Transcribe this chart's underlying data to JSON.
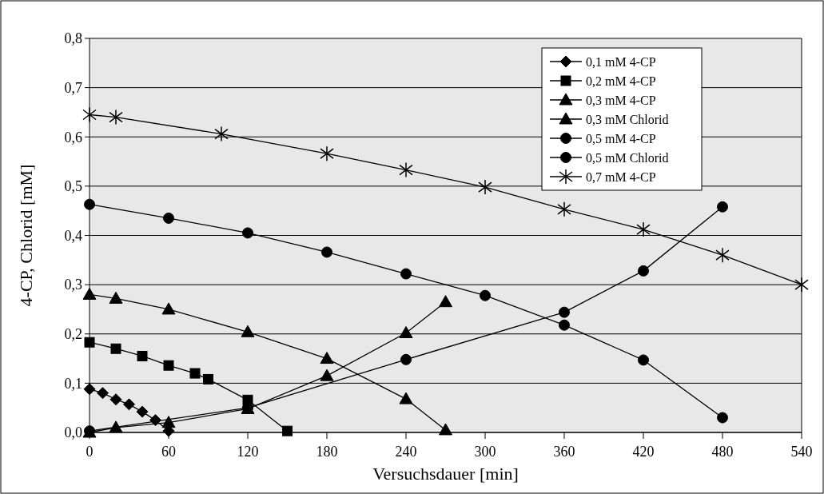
{
  "chart_data": {
    "type": "line",
    "xlabel": "Versuchsdauer [min]",
    "ylabel": "4-CP, Chlorid [mM]",
    "xlim": [
      0,
      540
    ],
    "xticks": [
      0,
      60,
      120,
      180,
      240,
      300,
      360,
      420,
      480,
      540
    ],
    "ylim": [
      0,
      0.8
    ],
    "yticks": [
      {
        "value": 0,
        "label": "0,0"
      },
      {
        "value": 0.1,
        "label": "0,1"
      },
      {
        "value": 0.2,
        "label": "0,2"
      },
      {
        "value": 0.3,
        "label": "0,3"
      },
      {
        "value": 0.4,
        "label": "0,4"
      },
      {
        "value": 0.5,
        "label": "0,5"
      },
      {
        "value": 0.6,
        "label": "0,6"
      },
      {
        "value": 0.7,
        "label": "0,7"
      },
      {
        "value": 0.8,
        "label": "0,8"
      }
    ],
    "grid": "y",
    "legend": "top right",
    "line_style": "solid",
    "series": [
      {
        "name": "0,1 mM 4-CP",
        "color": "#000000",
        "marker": "diamond",
        "x": [
          0,
          10,
          20,
          30,
          40,
          50,
          60
        ],
        "values": [
          0.088,
          0.08,
          0.067,
          0.057,
          0.042,
          0.025,
          0.003
        ]
      },
      {
        "name": "0,2 mM 4-CP",
        "color": "#000000",
        "marker": "square",
        "x": [
          0,
          20,
          40,
          60,
          80,
          90,
          120,
          150
        ],
        "values": [
          0.183,
          0.17,
          0.155,
          0.136,
          0.12,
          0.108,
          0.066,
          0.003
        ]
      },
      {
        "name": "0,3 mM 4-CP",
        "color": "#000000",
        "marker": "triangle",
        "x": [
          0,
          20,
          60,
          120,
          180,
          240,
          270
        ],
        "values": [
          0.28,
          0.272,
          0.25,
          0.204,
          0.15,
          0.068,
          0.005
        ]
      },
      {
        "name": "0,3 mM Chlorid",
        "color": "#000000",
        "marker": "triangle",
        "x": [
          0,
          20,
          60,
          120,
          180,
          240,
          270
        ],
        "values": [
          0,
          0.01,
          0.02,
          0.048,
          0.115,
          0.202,
          0.265
        ]
      },
      {
        "name": "0,5 mM 4-CP",
        "color": "#000000",
        "marker": "circle",
        "x": [
          0,
          60,
          120,
          180,
          240,
          300,
          360,
          420,
          480
        ],
        "values": [
          0.463,
          0.435,
          0.405,
          0.366,
          0.322,
          0.278,
          0.218,
          0.147,
          0.03
        ]
      },
      {
        "name": "0,5 mM Chlorid",
        "color": "#000000",
        "marker": "circle",
        "x": [
          0,
          120,
          240,
          360,
          420,
          480
        ],
        "values": [
          0.003,
          0.05,
          0.148,
          0.244,
          0.328,
          0.458
        ]
      },
      {
        "name": "0,7 mM 4-CP",
        "color": "#000000",
        "marker": "cross",
        "x": [
          0,
          20,
          100,
          180,
          240,
          300,
          360,
          420,
          480,
          540
        ],
        "values": [
          0.645,
          0.64,
          0.606,
          0.566,
          0.533,
          0.498,
          0.453,
          0.412,
          0.36,
          0.3
        ]
      }
    ]
  }
}
